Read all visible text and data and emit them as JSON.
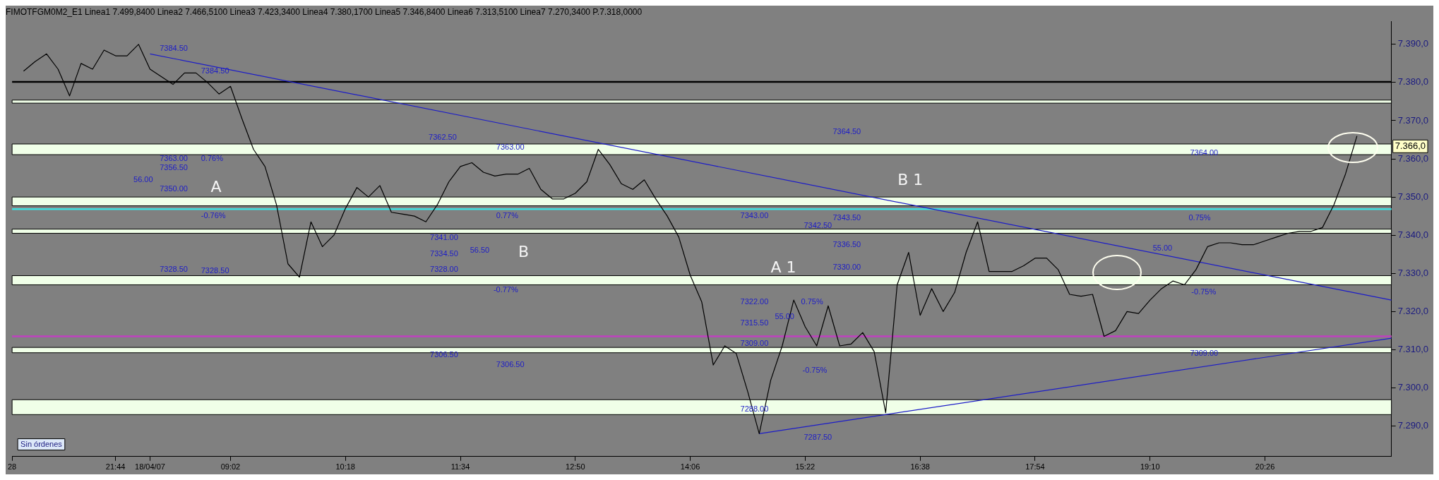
{
  "chart_data": {
    "type": "line",
    "subtitle": "FIMOTFGM0M2_E1 Linea1 7.499,8400 Linea2 7.466,5100 Linea3 7.423,3400 Linea4 7.380,1700 Linea5 7.346,8400 Linea6 7.313,5100 Linea7 7.270,3400 P.7.318,0000",
    "categories": [
      "28",
      null,
      null,
      null,
      null,
      null,
      null,
      null,
      null,
      "21:44",
      null,
      null,
      "18/04/07",
      null,
      null,
      null,
      null,
      null,
      null,
      "09:02",
      null,
      null,
      null,
      null,
      null,
      null,
      null,
      null,
      null,
      "10:18",
      null,
      null,
      null,
      null,
      null,
      null,
      null,
      null,
      null,
      "11:34",
      null,
      null,
      null,
      null,
      null,
      null,
      null,
      null,
      null,
      "12:50",
      null,
      null,
      null,
      null,
      null,
      null,
      null,
      null,
      null,
      "14:06",
      null,
      null,
      null,
      null,
      null,
      null,
      null,
      null,
      null,
      "15:22",
      null,
      null,
      null,
      null,
      null,
      null,
      null,
      null,
      null,
      "16:38",
      null,
      null,
      null,
      null,
      null,
      null,
      null,
      null,
      null,
      "17:54",
      null,
      null,
      null,
      null,
      null,
      null,
      null,
      null,
      null,
      "19:10",
      null,
      null,
      null,
      null,
      null,
      null,
      null,
      null,
      null,
      "20:26",
      null,
      null,
      null,
      null,
      null,
      null,
      null,
      null,
      null,
      null,
      null
    ],
    "ylim": [
      7282,
      7396
    ],
    "yticks": [
      {
        "value": 7290,
        "label": "7.290,0"
      },
      {
        "value": 7300,
        "label": "7.300,0"
      },
      {
        "value": 7310,
        "label": "7.310,0"
      },
      {
        "value": 7320,
        "label": "7.320,0"
      },
      {
        "value": 7330,
        "label": "7.330,0"
      },
      {
        "value": 7340,
        "label": "7.340,0"
      },
      {
        "value": 7350,
        "label": "7.350,0"
      },
      {
        "value": 7360,
        "label": "7.360,0"
      },
      {
        "value": 7370,
        "label": "7.370,0"
      },
      {
        "value": 7380,
        "label": "7.380,0"
      },
      {
        "value": 7390,
        "label": "7.390,0"
      }
    ],
    "marker": "none",
    "line_style": "solid",
    "series": [
      {
        "color": "#000000",
        "values": [
          null,
          7383,
          7385.5,
          7387.5,
          7383.5,
          7376.5,
          7385,
          7383.5,
          7388.5,
          7387,
          7387,
          7390,
          7383.5,
          7381.5,
          7379.5,
          7382.5,
          7382.5,
          7380,
          7377,
          7379,
          7370.5,
          7362.5,
          7358,
          7348,
          7332.5,
          7329,
          7343.5,
          7337,
          7340,
          7347,
          7352.5,
          7350,
          7353,
          7346,
          7345.5,
          7345,
          7343.5,
          7348,
          7354,
          7358,
          7359,
          7356.5,
          7355.5,
          7356,
          7356,
          7357.5,
          7352,
          7349.5,
          7349.5,
          7351,
          7354,
          7362.5,
          7358.5,
          7353.5,
          7352,
          7354.5,
          7349.5,
          7345,
          7339.5,
          7329.5,
          7322.5,
          7306,
          7311,
          7309,
          7299,
          7288,
          7302,
          7311,
          7323,
          7316,
          7311,
          7321.5,
          7311,
          7311.5,
          7314.5,
          7309.5,
          7293.5,
          7327,
          7335.5,
          7319,
          7326,
          7320,
          7325,
          7335.5,
          7343.5,
          7330.5,
          7330.5,
          7330.5,
          7332,
          7334,
          7334,
          7331,
          7324.5,
          7324,
          7324.5,
          7313.5,
          7315,
          7320,
          7319.5,
          7323,
          7326,
          7328,
          7327,
          7331,
          7337,
          7338,
          7338,
          7337.5,
          7337.5,
          7338.5,
          7339.5,
          7340.5,
          7341,
          7341,
          7342,
          7348,
          7356,
          7366,
          null,
          null,
          null
        ]
      },
      {
        "type": "line",
        "color": "#1c1cc8",
        "values": [
          null,
          null,
          null,
          null,
          null,
          null,
          null,
          null,
          null,
          null,
          null,
          null,
          7387.5,
          null,
          null,
          null,
          null,
          null,
          null,
          null,
          null,
          null,
          null,
          null,
          null,
          null,
          null,
          null,
          null,
          null,
          null,
          null,
          null,
          null,
          null,
          null,
          null,
          null,
          null,
          null,
          null,
          null,
          null,
          null,
          null,
          null,
          null,
          null,
          null,
          null,
          null,
          null,
          null,
          null,
          null,
          null,
          null,
          null,
          null,
          null,
          null,
          null,
          null,
          null,
          null,
          null,
          null,
          null,
          null,
          null,
          null,
          null,
          null,
          null,
          null,
          null,
          null,
          null,
          null,
          null,
          null,
          null,
          null,
          null,
          null,
          null,
          null,
          null,
          null,
          null,
          null,
          null,
          null,
          null,
          null,
          null,
          null,
          null,
          null,
          null,
          null,
          null,
          null,
          null,
          null,
          null,
          null,
          null,
          null,
          null,
          null,
          null,
          null,
          null,
          null,
          null,
          null,
          null,
          null,
          null,
          7323
        ]
      },
      {
        "type": "line",
        "color": "#1c1cc8",
        "values": [
          null,
          null,
          null,
          null,
          null,
          null,
          null,
          null,
          null,
          null,
          null,
          null,
          null,
          null,
          null,
          null,
          null,
          null,
          null,
          null,
          null,
          null,
          null,
          null,
          null,
          null,
          null,
          null,
          null,
          null,
          null,
          null,
          null,
          null,
          null,
          null,
          null,
          null,
          null,
          null,
          null,
          null,
          null,
          null,
          null,
          null,
          null,
          null,
          null,
          null,
          null,
          null,
          null,
          null,
          null,
          null,
          null,
          null,
          null,
          null,
          null,
          null,
          null,
          null,
          null,
          7288,
          null,
          null,
          null,
          null,
          null,
          null,
          null,
          null,
          null,
          null,
          null,
          null,
          null,
          null,
          null,
          null,
          null,
          null,
          null,
          null,
          null,
          null,
          null,
          null,
          null,
          null,
          null,
          null,
          null,
          null,
          null,
          null,
          null,
          null,
          null,
          null,
          null,
          null,
          null,
          null,
          null,
          null,
          null,
          null,
          null,
          null,
          null,
          null,
          null,
          null,
          null,
          null,
          null,
          null,
          7313
        ]
      }
    ],
    "bands": [
      {
        "axis": "y",
        "from": 7374.6,
        "to": 7375.4,
        "color": "#f0ffe8"
      },
      {
        "axis": "y",
        "from": 7361.1,
        "to": 7363.9,
        "color": "#f0ffe8"
      },
      {
        "axis": "y",
        "from": 7347.7,
        "to": 7350,
        "color": "#f0ffe8"
      },
      {
        "axis": "y",
        "from": 7340.5,
        "to": 7341.6,
        "color": "#f0ffe8"
      },
      {
        "axis": "y",
        "from": 7327,
        "to": 7329.4,
        "color": "#f0ffe8"
      },
      {
        "axis": "y",
        "from": 7309.2,
        "to": 7310.6,
        "color": "#f0ffe8"
      },
      {
        "axis": "y",
        "from": 7293,
        "to": 7296.9,
        "color": "#f0ffe8"
      }
    ],
    "ref_lines": [
      {
        "axis": "y",
        "value": 7380.17,
        "color": "#000000"
      },
      {
        "axis": "y",
        "value": 7346.84,
        "color": "#40e0e0"
      },
      {
        "axis": "y",
        "value": 7313.51,
        "color": "#c040c0"
      }
    ],
    "annotations": [
      "7384.50",
      "7384.50",
      "7363.00",
      "0.76%",
      "7356.50",
      "56.00",
      "7350.00",
      "-0.76%",
      "7328.50",
      "7328.50",
      "A",
      "7362.50",
      "7363.00",
      "0.77%",
      "7341.00",
      "7334.50",
      "56.50",
      "7328.00",
      "-0.77%",
      "7306.50",
      "7306.50",
      "B",
      "7343.00",
      "7342.50",
      "7322.00",
      "0.75%",
      "7315.50",
      "55.00",
      "7309.00",
      "-0.75%",
      "7288.00",
      "7287.50",
      "A 1",
      "7364.50",
      "7343.50",
      "7336.50",
      "7330.00",
      "B 1",
      "7364.00",
      "0.75%",
      "55.00",
      "-0.75%",
      "7309.00",
      "7.366,0",
      "Sin órdenes"
    ]
  }
}
